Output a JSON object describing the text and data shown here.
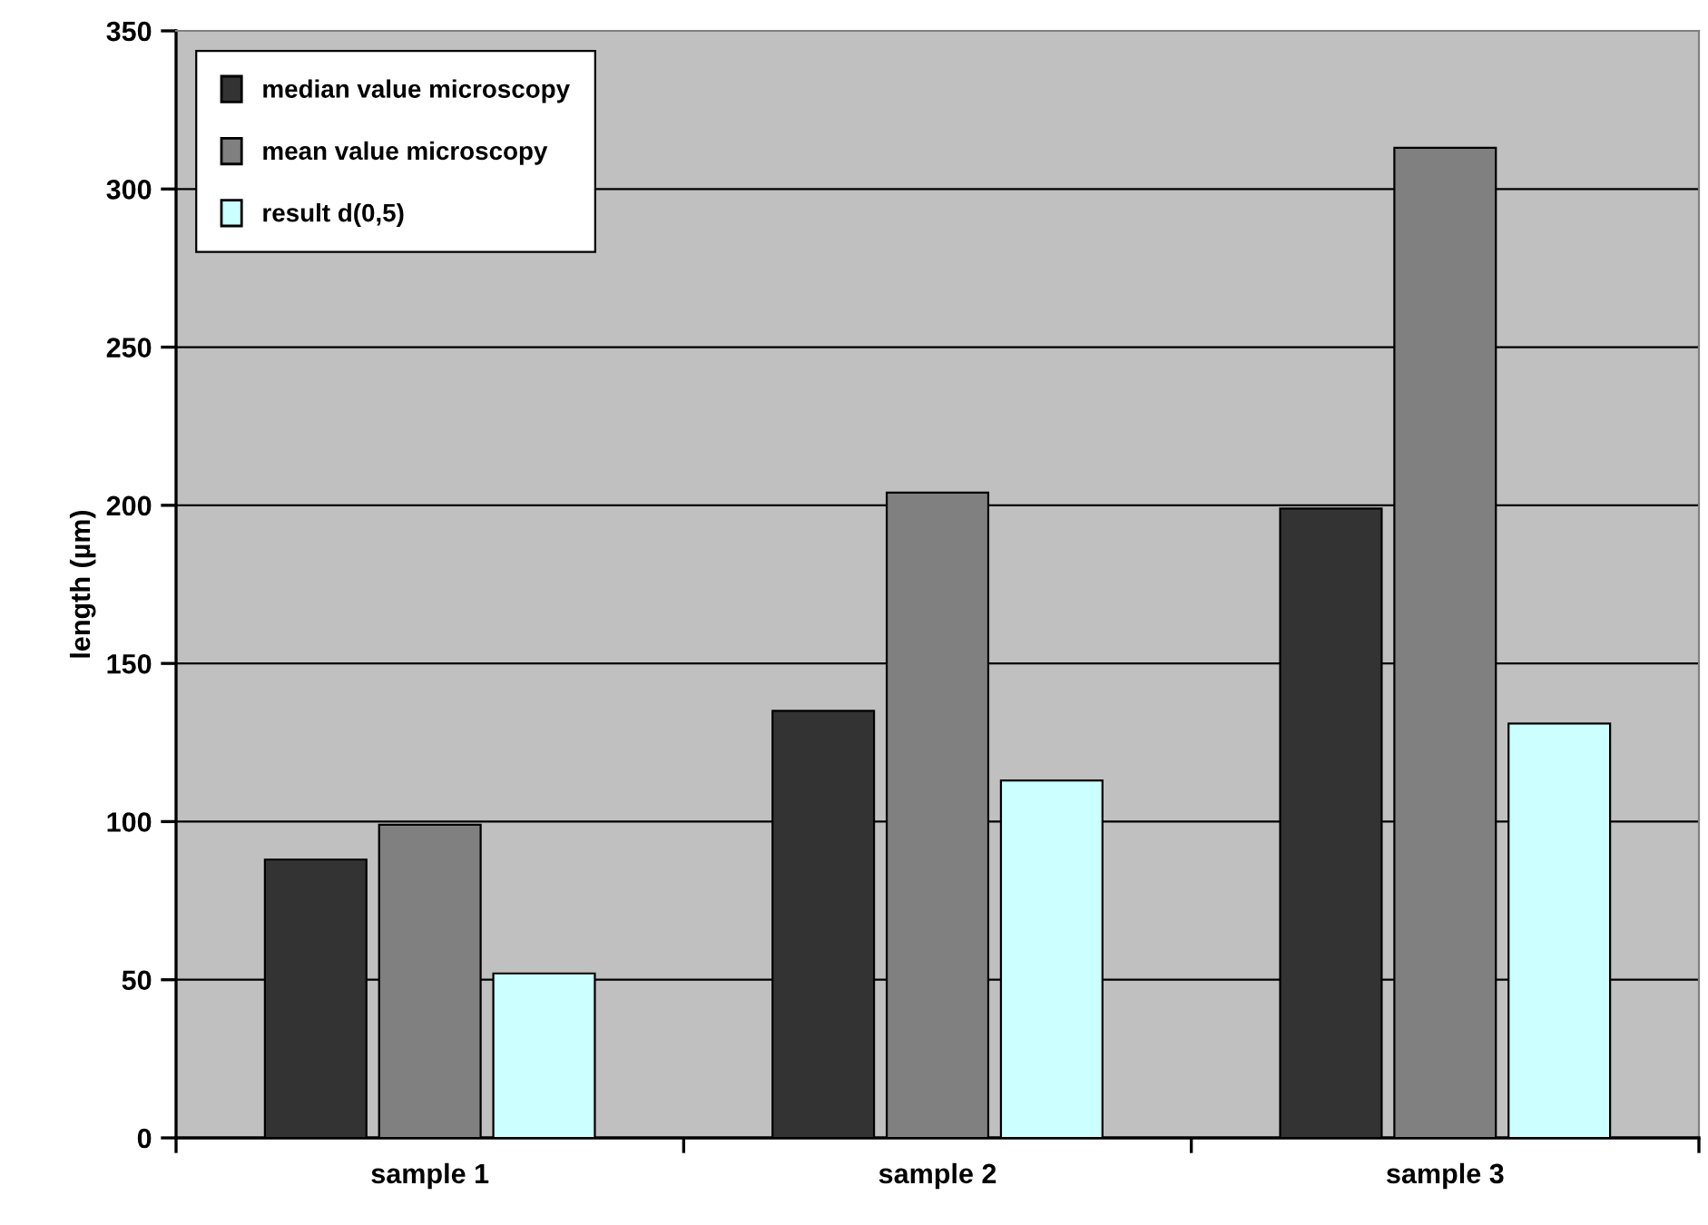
{
  "chart_data": {
    "type": "bar",
    "ylabel": "length (µm)",
    "categories": [
      "sample 1",
      "sample 2",
      "sample 3"
    ],
    "series": [
      {
        "name": "median value microscopy",
        "color": "#333333",
        "values": [
          88,
          135,
          199
        ]
      },
      {
        "name": "mean value microscopy",
        "color": "#808080",
        "values": [
          99,
          204,
          313
        ]
      },
      {
        "name": "result d(0,5)",
        "color": "#ccffff",
        "values": [
          52,
          113,
          131
        ]
      }
    ],
    "ylim": [
      0,
      350
    ],
    "yticks": [
      0,
      50,
      100,
      150,
      200,
      250,
      300,
      350
    ],
    "grid": "y",
    "legend": "top left"
  }
}
